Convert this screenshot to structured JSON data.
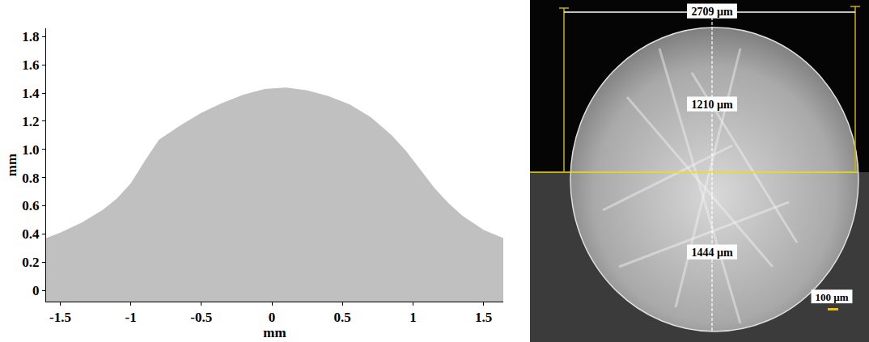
{
  "chart_data": {
    "type": "area",
    "x": [
      -1.6,
      -1.5,
      -1.35,
      -1.2,
      -1.1,
      -1.0,
      -0.9,
      -0.8,
      -0.65,
      -0.5,
      -0.35,
      -0.2,
      -0.05,
      0.1,
      0.25,
      0.4,
      0.55,
      0.7,
      0.85,
      0.95,
      1.05,
      1.15,
      1.25,
      1.35,
      1.5,
      1.64
    ],
    "values": [
      0.37,
      0.41,
      0.48,
      0.57,
      0.65,
      0.76,
      0.92,
      1.07,
      1.17,
      1.26,
      1.33,
      1.39,
      1.43,
      1.44,
      1.42,
      1.38,
      1.32,
      1.23,
      1.1,
      0.99,
      0.86,
      0.73,
      0.62,
      0.53,
      0.43,
      0.37
    ],
    "color": "#c0c0c0",
    "x_label": "mm",
    "y_label": "mm",
    "xlim": [
      -1.6,
      1.64
    ],
    "ylim": [
      -0.08,
      1.86
    ],
    "xticks": [
      -1.5,
      -1,
      -0.5,
      0,
      0.5,
      1,
      1.5
    ],
    "yticks": [
      0,
      0.2,
      0.4,
      0.6,
      0.8,
      {
        "value": 1,
        "label": "1.0"
      },
      1.2,
      1.4,
      1.6,
      1.8
    ],
    "grid": false
  },
  "micrograph": {
    "width_label": "2709 µm",
    "reinforcement_label": "1210 µm",
    "depth_label": "1444 µm",
    "scale_bar_label": "100 µm"
  }
}
